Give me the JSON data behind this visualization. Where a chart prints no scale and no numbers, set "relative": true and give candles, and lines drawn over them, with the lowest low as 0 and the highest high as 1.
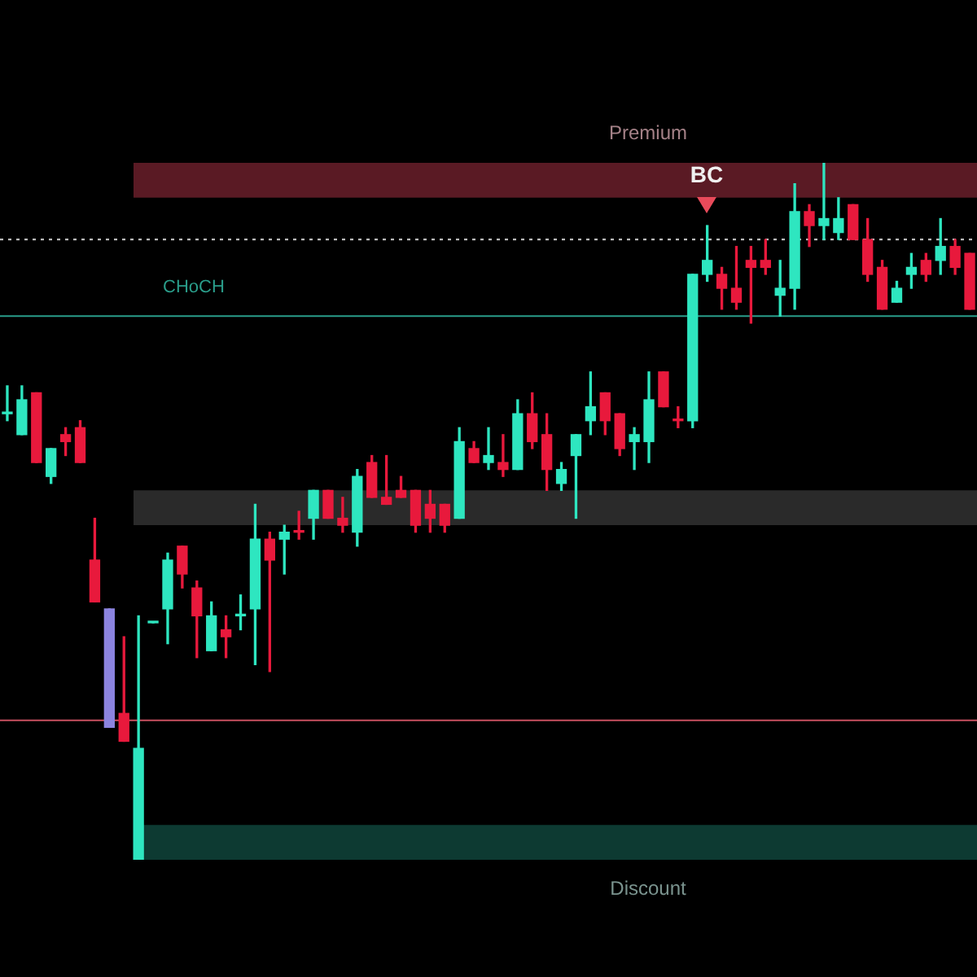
{
  "chart_data": {
    "type": "candlestick",
    "relative": true,
    "categories": [
      null,
      null,
      null,
      null,
      null,
      null,
      null,
      null,
      null,
      null,
      null,
      null,
      null,
      null,
      null,
      null,
      null,
      null,
      null,
      null,
      null,
      null,
      null,
      null,
      null,
      null,
      null,
      null,
      null,
      null,
      null,
      null,
      null,
      null,
      null,
      null,
      null,
      null,
      null,
      null,
      null,
      null,
      null,
      null,
      null,
      null,
      null,
      null,
      null,
      null,
      null,
      null,
      null,
      null,
      null,
      null,
      null,
      null,
      null,
      null,
      null,
      null,
      null,
      null,
      null,
      null,
      null
    ],
    "ohlc": [
      [
        0.64,
        0.68,
        0.63,
        0.64
      ],
      [
        0.61,
        0.68,
        0.61,
        0.66
      ],
      [
        0.67,
        0.67,
        0.57,
        0.57
      ],
      [
        0.55,
        0.59,
        0.54,
        0.59
      ],
      [
        0.61,
        0.62,
        0.58,
        0.6
      ],
      [
        0.62,
        0.63,
        0.57,
        0.57
      ],
      [
        0.43,
        0.49,
        0.37,
        0.37
      ],
      [
        0.36,
        0.36,
        0.19,
        0.19
      ],
      [
        0.21,
        0.32,
        0.17,
        0.17
      ],
      [
        0,
        0.35,
        0,
        0.16
      ],
      [
        0.34,
        0.34,
        0.34,
        0.34
      ],
      [
        0.36,
        0.44,
        0.31,
        0.43
      ],
      [
        0.45,
        0.45,
        0.39,
        0.41
      ],
      [
        0.39,
        0.4,
        0.29,
        0.35
      ],
      [
        0.3,
        0.37,
        0.3,
        0.35
      ],
      [
        0.33,
        0.35,
        0.29,
        0.32
      ],
      [
        0.35,
        0.38,
        0.33,
        0.35
      ],
      [
        0.36,
        0.51,
        0.28,
        0.46
      ],
      [
        0.46,
        0.47,
        0.27,
        0.43
      ],
      [
        0.46,
        0.48,
        0.41,
        0.47
      ],
      [
        0.47,
        0.5,
        0.46,
        0.47
      ],
      [
        0.49,
        0.53,
        0.46,
        0.53
      ],
      [
        0.53,
        0.53,
        0.49,
        0.49
      ],
      [
        0.49,
        0.52,
        0.47,
        0.48
      ],
      [
        0.47,
        0.56,
        0.45,
        0.55
      ],
      [
        0.57,
        0.58,
        0.52,
        0.52
      ],
      [
        0.52,
        0.58,
        0.51,
        0.51
      ],
      [
        0.53,
        0.55,
        0.52,
        0.52
      ],
      [
        0.53,
        0.53,
        0.47,
        0.48
      ],
      [
        0.51,
        0.53,
        0.47,
        0.49
      ],
      [
        0.51,
        0.51,
        0.47,
        0.48
      ],
      [
        0.49,
        0.62,
        0.49,
        0.6
      ],
      [
        0.59,
        0.6,
        0.57,
        0.57
      ],
      [
        0.57,
        0.62,
        0.56,
        0.58
      ],
      [
        0.57,
        0.61,
        0.55,
        0.56
      ],
      [
        0.56,
        0.66,
        0.56,
        0.64
      ],
      [
        0.64,
        0.67,
        0.59,
        0.6
      ],
      [
        0.61,
        0.64,
        0.53,
        0.56
      ],
      [
        0.54,
        0.57,
        0.53,
        0.56
      ],
      [
        0.58,
        0.61,
        0.49,
        0.61
      ],
      [
        0.63,
        0.7,
        0.61,
        0.65
      ],
      [
        0.67,
        0.67,
        0.61,
        0.63
      ],
      [
        0.64,
        0.64,
        0.58,
        0.59
      ],
      [
        0.6,
        0.62,
        0.56,
        0.61
      ],
      [
        0.6,
        0.7,
        0.57,
        0.66
      ],
      [
        0.7,
        0.7,
        0.65,
        0.65
      ],
      [
        0.63,
        0.65,
        0.62,
        0.63
      ],
      [
        0.63,
        0.84,
        0.62,
        0.84
      ],
      [
        0.84,
        0.91,
        0.83,
        0.86
      ],
      [
        0.84,
        0.85,
        0.79,
        0.82
      ],
      [
        0.82,
        0.88,
        0.79,
        0.8
      ],
      [
        0.86,
        0.88,
        0.77,
        0.85
      ],
      [
        0.86,
        0.89,
        0.84,
        0.85
      ],
      [
        0.81,
        0.86,
        0.78,
        0.82
      ],
      [
        0.82,
        0.97,
        0.79,
        0.93
      ],
      [
        0.93,
        0.94,
        0.88,
        0.91
      ],
      [
        0.91,
        1,
        0.89,
        0.92
      ],
      [
        0.9,
        0.95,
        0.89,
        0.92
      ],
      [
        0.94,
        0.94,
        0.89,
        0.89
      ],
      [
        0.89,
        0.92,
        0.83,
        0.84
      ],
      [
        0.85,
        0.86,
        0.79,
        0.79
      ],
      [
        0.8,
        0.83,
        0.8,
        0.82
      ],
      [
        0.84,
        0.87,
        0.82,
        0.85
      ],
      [
        0.86,
        0.87,
        0.83,
        0.84
      ],
      [
        0.86,
        0.92,
        0.84,
        0.88
      ],
      [
        0.88,
        0.89,
        0.84,
        0.85
      ],
      [
        0.87,
        0.87,
        0.79,
        0.79
      ]
    ],
    "colors": [
      "#2ee6c0",
      "#2ee6c0",
      "#e8193c",
      "#2ee6c0",
      "#e8193c",
      "#e8193c",
      "#e8193c",
      "#8c84e0",
      "#e8193c",
      "#2ee6c0",
      "#2ee6c0",
      "#2ee6c0",
      "#e8193c",
      "#e8193c",
      "#2ee6c0",
      "#e8193c",
      "#2ee6c0",
      "#2ee6c0",
      "#e8193c",
      "#2ee6c0",
      "#e8193c",
      "#2ee6c0",
      "#e8193c",
      "#e8193c",
      "#2ee6c0",
      "#e8193c",
      "#e8193c",
      "#e8193c",
      "#e8193c",
      "#e8193c",
      "#e8193c",
      "#2ee6c0",
      "#e8193c",
      "#2ee6c0",
      "#e8193c",
      "#2ee6c0",
      "#e8193c",
      "#e8193c",
      "#2ee6c0",
      "#2ee6c0",
      "#2ee6c0",
      "#e8193c",
      "#e8193c",
      "#2ee6c0",
      "#2ee6c0",
      "#e8193c",
      "#e8193c",
      "#2ee6c0",
      "#2ee6c0",
      "#e8193c",
      "#e8193c",
      "#e8193c",
      "#e8193c",
      "#2ee6c0",
      "#2ee6c0",
      "#e8193c",
      "#2ee6c0",
      "#2ee6c0",
      "#e8193c",
      "#e8193c",
      "#e8193c",
      "#2ee6c0",
      "#2ee6c0",
      "#e8193c",
      "#2ee6c0",
      "#e8193c",
      "#e8193c"
    ],
    "bands": [
      {
        "axis": "y",
        "from": 0.95,
        "to": 1,
        "label": "Premium",
        "color": "#5a1a24"
      },
      {
        "axis": "y",
        "from": 0.48,
        "to": 0.53,
        "label": null,
        "color": "#2a2a2a"
      },
      {
        "axis": "y",
        "from": 0,
        "to": 0.05,
        "label": "Discount",
        "color": "#0d3a32"
      }
    ],
    "ref_lines": [
      {
        "axis": "y",
        "value": 0.89,
        "label": null,
        "color": "#bbbbbb",
        "line_style": "dotted"
      },
      {
        "axis": "y",
        "value": 0.78,
        "label": "CHoCH",
        "color": "#2a9d8a",
        "line_style": "solid"
      },
      {
        "axis": "y",
        "value": 0.2,
        "label": null,
        "color": "#c85060",
        "line_style": "solid"
      }
    ],
    "annotations": [
      "BC"
    ],
    "legend": false
  }
}
